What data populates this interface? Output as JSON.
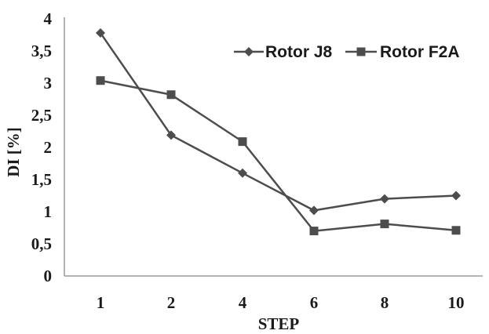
{
  "chart_data": {
    "type": "line",
    "categories": [
      "1",
      "2",
      "4",
      "6",
      "8",
      "10"
    ],
    "series": [
      {
        "name": "Rotor J8",
        "marker": "diamond",
        "color": "#4d4d4d",
        "values": [
          3.78,
          2.19,
          1.6,
          1.02,
          1.2,
          1.25
        ]
      },
      {
        "name": "Rotor F2A",
        "marker": "square",
        "color": "#4d4d4d",
        "values": [
          3.04,
          2.82,
          2.09,
          0.7,
          0.81,
          0.71
        ]
      }
    ],
    "xlabel": "STEP",
    "ylabel": "DI [%]",
    "ylim": [
      0,
      4
    ],
    "yticks": [
      "0",
      "0,5",
      "1",
      "1,5",
      "2",
      "2,5",
      "3",
      "3,5",
      "4"
    ],
    "grid": false,
    "legend_position": "top-right"
  }
}
